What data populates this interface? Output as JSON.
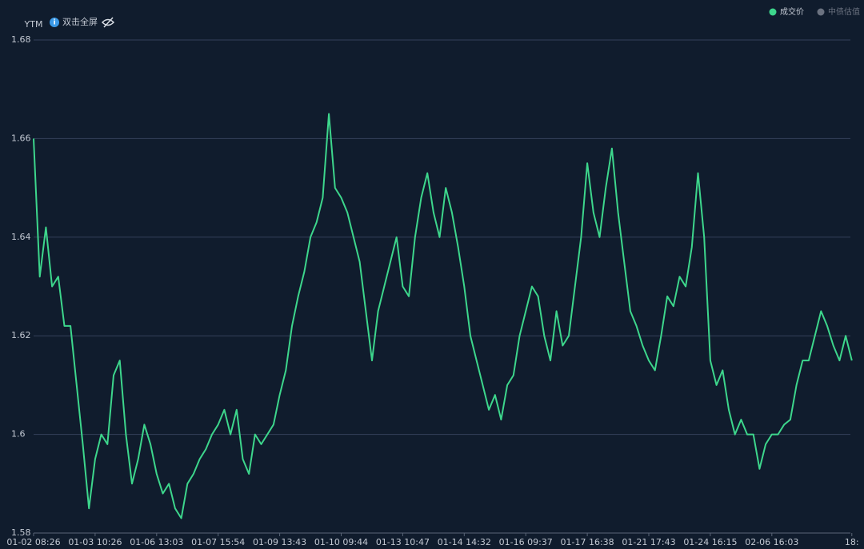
{
  "chart_data": {
    "type": "line",
    "ylabel": "YTM",
    "toolbar_text": "双击全屏",
    "categories": [
      "01-02 08:26",
      null,
      null,
      null,
      null,
      null,
      null,
      null,
      null,
      null,
      "01-03 10:26",
      null,
      null,
      null,
      null,
      null,
      null,
      null,
      null,
      null,
      "01-06 13:03",
      null,
      null,
      null,
      null,
      null,
      null,
      null,
      null,
      null,
      "01-07 15:54",
      null,
      null,
      null,
      null,
      null,
      null,
      null,
      null,
      null,
      "01-09 13:43",
      null,
      null,
      null,
      null,
      null,
      null,
      null,
      null,
      null,
      "01-10 09:44",
      null,
      null,
      null,
      null,
      null,
      null,
      null,
      null,
      null,
      "01-13 10:47",
      null,
      null,
      null,
      null,
      null,
      null,
      null,
      null,
      null,
      "01-14 14:32",
      null,
      null,
      null,
      null,
      null,
      null,
      null,
      null,
      null,
      "01-16 09:37",
      null,
      null,
      null,
      null,
      null,
      null,
      null,
      null,
      null,
      "01-17 16:38",
      null,
      null,
      null,
      null,
      null,
      null,
      null,
      null,
      null,
      "01-21 17:43",
      null,
      null,
      null,
      null,
      null,
      null,
      null,
      null,
      null,
      "01-24 16:15",
      null,
      null,
      null,
      null,
      null,
      null,
      null,
      null,
      null,
      "02-06 16:03",
      null,
      null,
      null,
      null,
      null,
      null,
      null,
      null,
      null,
      null,
      null,
      null,
      "18:"
    ],
    "series": [
      {
        "name": "成交价",
        "color": "#3dd68c",
        "values": [
          1.66,
          1.632,
          1.642,
          1.63,
          1.632,
          1.622,
          1.622,
          1.61,
          1.598,
          1.585,
          1.595,
          1.6,
          1.598,
          1.612,
          1.615,
          1.6,
          1.59,
          1.595,
          1.602,
          1.598,
          1.592,
          1.588,
          1.59,
          1.585,
          1.583,
          1.59,
          1.592,
          1.595,
          1.597,
          1.6,
          1.602,
          1.605,
          1.6,
          1.605,
          1.595,
          1.592,
          1.6,
          1.598,
          1.6,
          1.602,
          1.608,
          1.613,
          1.622,
          1.628,
          1.633,
          1.64,
          1.643,
          1.648,
          1.665,
          1.65,
          1.648,
          1.645,
          1.64,
          1.635,
          1.625,
          1.615,
          1.625,
          1.63,
          1.635,
          1.64,
          1.63,
          1.628,
          1.64,
          1.648,
          1.653,
          1.645,
          1.64,
          1.65,
          1.645,
          1.638,
          1.63,
          1.62,
          1.615,
          1.61,
          1.605,
          1.608,
          1.603,
          1.61,
          1.612,
          1.62,
          1.625,
          1.63,
          1.628,
          1.62,
          1.615,
          1.625,
          1.618,
          1.62,
          1.63,
          1.64,
          1.655,
          1.645,
          1.64,
          1.65,
          1.658,
          1.645,
          1.635,
          1.625,
          1.622,
          1.618,
          1.615,
          1.613,
          1.62,
          1.628,
          1.626,
          1.632,
          1.63,
          1.638,
          1.653,
          1.64,
          1.615,
          1.61,
          1.613,
          1.605,
          1.6,
          1.603,
          1.6,
          1.6,
          1.593,
          1.598,
          1.6,
          1.6,
          1.602,
          1.603,
          1.61,
          1.615,
          1.615,
          1.62,
          1.625,
          1.622,
          1.618,
          1.615,
          1.62,
          1.615
        ]
      },
      {
        "name": "中债估值",
        "color": "#6b7280",
        "hidden": true,
        "values": [
          null,
          null,
          null,
          null,
          null,
          null,
          null,
          null,
          null,
          null,
          null,
          null,
          null,
          null,
          null,
          null,
          null,
          null,
          null,
          null,
          null,
          null,
          null,
          null,
          null,
          null,
          null,
          null,
          null,
          null,
          null,
          null,
          null,
          null,
          null,
          null,
          null,
          null,
          null,
          null,
          null,
          null,
          null,
          null,
          null,
          null,
          null,
          null,
          null,
          null,
          null,
          null,
          null,
          null,
          null,
          null,
          null,
          null,
          null,
          null,
          null,
          null,
          null,
          null,
          null,
          null,
          null,
          null,
          null,
          null,
          null,
          null,
          null,
          null,
          null,
          null,
          null,
          null,
          null,
          null,
          null,
          null,
          null,
          null,
          null,
          null,
          null,
          null,
          null,
          null,
          null,
          null,
          null,
          null,
          null,
          null,
          null,
          null,
          null,
          null,
          null,
          null,
          null,
          null,
          null,
          null,
          null,
          null,
          null,
          null,
          null,
          null,
          null,
          null,
          null,
          null,
          null,
          null,
          null,
          null,
          null,
          null,
          null,
          null,
          null,
          null,
          null,
          null,
          null,
          null,
          null,
          null,
          null,
          null
        ]
      }
    ],
    "ylim": [
      1.58,
      1.68
    ],
    "yticks": [
      1.58,
      1.6,
      1.62,
      1.64,
      1.66,
      1.68
    ],
    "grid": true
  }
}
